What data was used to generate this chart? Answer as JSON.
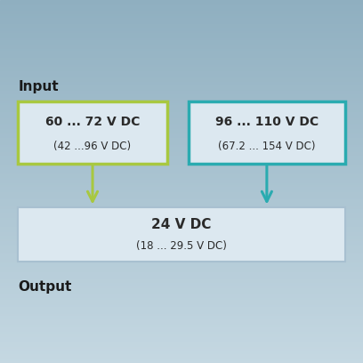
{
  "bg_color_top": "#8fafc0",
  "bg_color_bottom": "#c5d8e2",
  "title_input": "Input",
  "title_output": "Output",
  "box1_line1": "60 ... 72 V DC",
  "box1_line2": "(42 ...96 V DC)",
  "box2_line1": "96 ... 110 V DC",
  "box2_line2": "(67.2 ... 154 V DC)",
  "box3_line1": "24 V DC",
  "box3_line2": "(18 ... 29.5 V DC)",
  "box1_border": "#a8c840",
  "box2_border": "#2aabb0",
  "box3_border": "#a8c0d0",
  "box_bg": "#dce8f0",
  "arrow1_color": "#a8c840",
  "arrow2_color": "#2aabb0",
  "text_color": "#2a2a2a",
  "label_color": "#1a1a1a"
}
